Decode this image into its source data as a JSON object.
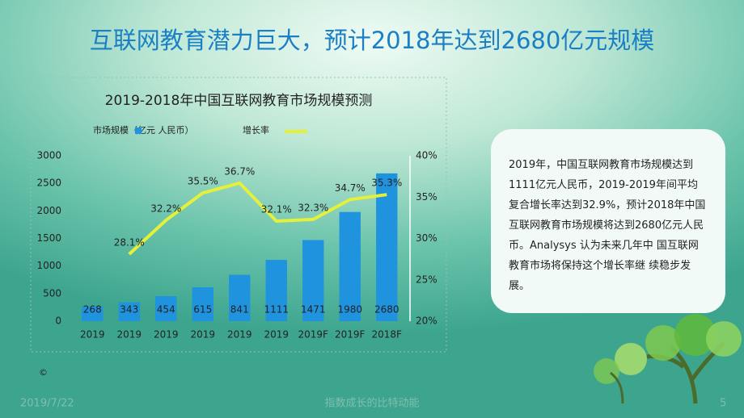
{
  "slide_title": "互联网教育潜力巨大，预计2018年达到2680亿元规模",
  "chart_data": {
    "type": "bar",
    "title": "2019-2018年中国互联网教育市场规模预测",
    "categories": [
      "2019",
      "2019",
      "2019",
      "2019",
      "2019",
      "2019",
      "2019F",
      "2019F",
      "2018F"
    ],
    "series": [
      {
        "name": "市场规模（亿元 人民币）",
        "type": "bar",
        "color": "#1f93de",
        "values": [
          268,
          343,
          454,
          615,
          841,
          1111,
          1471,
          1980,
          2680
        ]
      },
      {
        "name": "增长率",
        "type": "line",
        "axis": "y2",
        "color": "#e4f03a",
        "values": [
          null,
          28.1,
          32.2,
          35.5,
          36.7,
          32.1,
          32.3,
          34.7,
          35.3
        ],
        "value_labels": [
          null,
          "28.1%",
          "32.2%",
          "35.5%",
          "36.7%",
          "32.1%",
          "32.3%",
          "34.7%",
          "35.3%"
        ]
      }
    ],
    "ylim": [
      0,
      3000
    ],
    "yticks": [
      0,
      500,
      1000,
      1500,
      2000,
      2500,
      3000
    ],
    "y2lim": [
      20,
      40
    ],
    "y2ticks": [
      {
        "value": 20,
        "label": "20%"
      },
      {
        "value": 25,
        "label": "25%"
      },
      {
        "value": 30,
        "label": "30%"
      },
      {
        "value": 35,
        "label": "35%"
      },
      {
        "value": 40,
        "label": "40%"
      }
    ],
    "grid": false
  },
  "text_box": "2019年，中国互联网教育市场规模达到1111亿元人民币，2019-2019年间平均复合增长率达到32.9%，预计2018年中国互联网教育市场规模将达到2680亿元人民币。Analysys 认为未来几年中 国互联网教育市场将保持这个增长率继 续稳步发展。",
  "copyright": "©",
  "footer": {
    "date": "2019/7/22",
    "center": "指数成长的比特动能",
    "page": "5"
  }
}
